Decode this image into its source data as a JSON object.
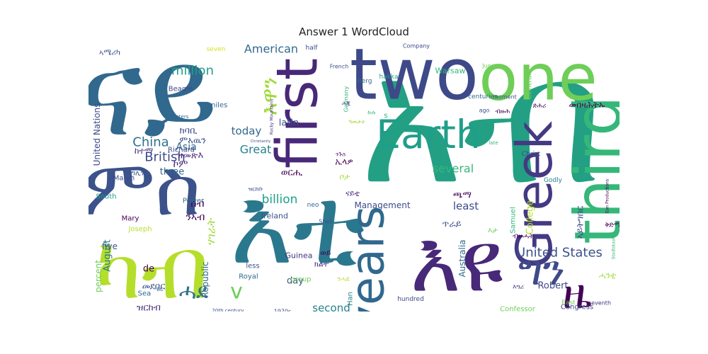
{
  "chart_data": {
    "type": "wordcloud",
    "title": "Answer 1 WordCloud",
    "palette": [
      "#440154",
      "#46327e",
      "#365c8d",
      "#277f8e",
      "#1fa187",
      "#4ac16d",
      "#a0da39",
      "#d2e21b"
    ],
    "words": [
      {
        "text": "ናይ",
        "weight": 100,
        "color": "#31688e"
      },
      {
        "text": "አብ",
        "weight": 98,
        "color": "#23a083"
      },
      {
        "text": "እቲ",
        "weight": 90,
        "color": "#2a788e"
      },
      {
        "text": "ምስ",
        "weight": 70,
        "color": "#3b528b"
      },
      {
        "text": "ካብ",
        "weight": 68,
        "color": "#b5de2b"
      },
      {
        "text": "እዩ",
        "weight": 66,
        "color": "#482878"
      },
      {
        "text": "two",
        "weight": 65,
        "color": "#3e4989"
      },
      {
        "text": "one",
        "weight": 60,
        "color": "#6ece58"
      },
      {
        "text": "third",
        "weight": 55,
        "color": "#35b779"
      },
      {
        "text": "first",
        "weight": 52,
        "color": "#482878"
      },
      {
        "text": "Greek",
        "weight": 46,
        "color": "#443983"
      },
      {
        "text": "years",
        "weight": 45,
        "color": "#31688e"
      },
      {
        "text": "Earth",
        "weight": 40,
        "color": "#1f9e89"
      },
      {
        "text": "ግን",
        "weight": 40,
        "color": "#3e4a89"
      },
      {
        "text": "ዜ",
        "weight": 38,
        "color": "#440154"
      },
      {
        "text": "ሓደ",
        "weight": 30,
        "color": "#2c728e"
      },
      {
        "text": "እዋን",
        "weight": 28,
        "color": "#a0da39"
      },
      {
        "text": "v",
        "weight": 22,
        "color": "#6ece58"
      },
      {
        "text": "United States",
        "weight": 18,
        "color": "#3b528b"
      },
      {
        "text": "China",
        "weight": 16,
        "color": "#2c728e"
      },
      {
        "text": "British",
        "weight": 15,
        "color": "#3e4a89"
      },
      {
        "text": "million",
        "weight": 14,
        "color": "#1f9e89"
      },
      {
        "text": "billion",
        "weight": 14,
        "color": "#1fa187"
      },
      {
        "text": "American",
        "weight": 13,
        "color": "#31688e"
      },
      {
        "text": "several",
        "weight": 13,
        "color": "#35b779"
      },
      {
        "text": "Great",
        "weight": 13,
        "color": "#26828e"
      },
      {
        "text": "today",
        "weight": 12,
        "color": "#31688e"
      },
      {
        "text": "second",
        "weight": 12,
        "color": "#26828e"
      },
      {
        "text": "least",
        "weight": 12,
        "color": "#3e4a89"
      },
      {
        "text": "ኮም",
        "weight": 12,
        "color": "#482878"
      },
      {
        "text": "ሰብ",
        "weight": 12,
        "color": "#440154"
      },
      {
        "text": "መበዛሕትኡ",
        "weight": 12,
        "color": "#440154"
      },
      {
        "text": "ክባቢ",
        "weight": 12,
        "color": "#3e4a89"
      },
      {
        "text": "ንኣብ",
        "weight": 12,
        "color": "#440154"
      },
      {
        "text": "ምኣዉን",
        "weight": 11,
        "color": "#3b528b"
      },
      {
        "text": "ዝመጽእ",
        "weight": 11,
        "color": "#482878"
      },
      {
        "text": "ወርሒ",
        "weight": 11,
        "color": "#440154"
      },
      {
        "text": "ሃገራት",
        "weight": 12,
        "color": "#a0da39"
      },
      {
        "text": "ከተማ",
        "weight": 11,
        "color": "#46327e"
      },
      {
        "text": "ጫማ",
        "weight": 11,
        "color": "#440154"
      },
      {
        "text": "ጥራይ",
        "weight": 11,
        "color": "#3b528b"
      },
      {
        "text": "ኣይትግበር",
        "weight": 13,
        "color": "#3e4a89"
      },
      {
        "text": "ሓንቲ",
        "weight": 11,
        "color": "#a0da39"
      },
      {
        "text": "United Nations",
        "weight": 11,
        "color": "#3e4a89"
      },
      {
        "text": "Asia",
        "weight": 10,
        "color": "#31688e"
      },
      {
        "text": "latin",
        "weight": 10,
        "color": "#3b528b"
      },
      {
        "text": "College",
        "weight": 10,
        "color": "#b5de2b"
      },
      {
        "text": "August",
        "weight": 10,
        "color": "#2a788e"
      },
      {
        "text": "Republic",
        "weight": 10,
        "color": "#31688e"
      },
      {
        "text": "Robert",
        "weight": 10,
        "color": "#3e4a89"
      },
      {
        "text": "Australia",
        "weight": 9,
        "color": "#31688e"
      },
      {
        "text": "day",
        "weight": 10,
        "color": "#3b528b"
      },
      {
        "text": "percent",
        "weight": 10,
        "color": "#6ece58"
      },
      {
        "text": "three",
        "weight": 10,
        "color": "#31688e"
      },
      {
        "text": "Ireland",
        "weight": 9,
        "color": "#3b528b"
      },
      {
        "text": "Management",
        "weight": 9,
        "color": "#3e4a89"
      },
      {
        "text": "five",
        "weight": 9,
        "color": "#3b528b"
      },
      {
        "text": "de",
        "weight": 10,
        "color": "#440154"
      },
      {
        "text": "ዝርከብ",
        "weight": 10,
        "color": "#46327e"
      },
      {
        "text": "መደበር",
        "weight": 10,
        "color": "#3b528b"
      },
      {
        "text": "እንግሊዝ",
        "weight": 11,
        "color": "#3b528b"
      },
      {
        "text": "ኣሜሪካ",
        "weight": 11,
        "color": "#3b528b"
      },
      {
        "text": "Guinea",
        "weight": 9,
        "color": "#46327e"
      },
      {
        "text": "Warsaw",
        "weight": 8,
        "color": "#35b779"
      },
      {
        "text": "Central",
        "weight": 8,
        "color": "#6ece58"
      },
      {
        "text": "Beagle",
        "weight": 8,
        "color": "#3e4a89"
      },
      {
        "text": "miles",
        "weight": 8,
        "color": "#31688e"
      },
      {
        "text": "Power",
        "weight": 8,
        "color": "#31688e"
      },
      {
        "text": "Joseph",
        "weight": 8,
        "color": "#b5de2b"
      },
      {
        "text": "Mary",
        "weight": 8,
        "color": "#440154"
      },
      {
        "text": "March",
        "weight": 8,
        "color": "#3e4a89"
      },
      {
        "text": "Richard",
        "weight": 8,
        "color": "#3e4a89"
      },
      {
        "text": "South",
        "weight": 8,
        "color": "#1f9e89"
      },
      {
        "text": "Sea",
        "weight": 8,
        "color": "#31688e"
      },
      {
        "text": "group",
        "weight": 8,
        "color": "#6ece58"
      },
      {
        "text": "less",
        "weight": 8,
        "color": "#3b528b"
      },
      {
        "text": "Royal",
        "weight": 8,
        "color": "#31688e"
      },
      {
        "text": "Han",
        "weight": 8,
        "color": "#26828e"
      },
      {
        "text": "hundred",
        "weight": 7,
        "color": "#3e4a89"
      },
      {
        "text": "Congress",
        "weight": 8,
        "color": "#3e4a89"
      },
      {
        "text": "Confessor",
        "weight": 8,
        "color": "#6ece58"
      },
      {
        "text": "Samuel",
        "weight": 8,
        "color": "#35b779"
      },
      {
        "text": "Godly",
        "weight": 7,
        "color": "#26828e"
      },
      {
        "text": "Christ",
        "weight": 7,
        "color": "#3e4a89"
      },
      {
        "text": "East",
        "weight": 7,
        "color": "#6ece58"
      },
      {
        "text": "seventh",
        "weight": 6,
        "color": "#46327e"
      },
      {
        "text": "1970s",
        "weight": 6,
        "color": "#3e4a89"
      },
      {
        "text": "20th century",
        "weight": 5,
        "color": "#3b528b"
      },
      {
        "text": "centuries",
        "weight": 7,
        "color": "#31688e"
      },
      {
        "text": "moment",
        "weight": 6,
        "color": "#3b528b"
      },
      {
        "text": "ago",
        "weight": 6,
        "color": "#3b528b"
      },
      {
        "text": "June",
        "weight": 6,
        "color": "#6ece58"
      },
      {
        "text": "Company",
        "weight": 6,
        "color": "#3e4a89"
      },
      {
        "text": "French",
        "weight": 6,
        "color": "#3b528b"
      },
      {
        "text": "hakka",
        "weight": 7,
        "color": "#1f9e89"
      },
      {
        "text": "Berg",
        "weight": 7,
        "color": "#31688e"
      },
      {
        "text": "Germany",
        "weight": 6,
        "color": "#35b779"
      },
      {
        "text": "half",
        "weight": 7,
        "color": "#3e4a89"
      },
      {
        "text": "seven",
        "weight": 7,
        "color": "#d2e21b"
      },
      {
        "text": "neo",
        "weight": 7,
        "color": "#31688e"
      },
      {
        "text": "Shell",
        "weight": 6,
        "color": "#3b528b"
      },
      {
        "text": "BC",
        "weight": 6,
        "color": "#31688e"
      },
      {
        "text": "meters",
        "weight": 6,
        "color": "#31688e"
      },
      {
        "text": "late",
        "weight": 6,
        "color": "#35b779"
      },
      {
        "text": "Rocky Mountains",
        "weight": 4,
        "color": "#46327e"
      },
      {
        "text": "Stadtstaaten",
        "weight": 5,
        "color": "#35b779"
      },
      {
        "text": "Eon Productions",
        "weight": 4,
        "color": "#440154"
      },
      {
        "text": "Christianity",
        "weight": 4,
        "color": "#3b528b"
      },
      {
        "text": "s",
        "weight": 9,
        "color": "#35b779"
      },
      {
        "text": "ኢላዎ",
        "weight": 10,
        "color": "#440154"
      },
      {
        "text": "ናይቲ",
        "weight": 10,
        "color": "#482878"
      },
      {
        "text": "ቦታ",
        "weight": 10,
        "color": "#a0da39"
      },
      {
        "text": "ወይ",
        "weight": 10,
        "color": "#440154"
      },
      {
        "text": "ክልተ",
        "weight": 10,
        "color": "#46327e"
      },
      {
        "text": "እታ",
        "weight": 10,
        "color": "#6ece58"
      },
      {
        "text": "ቅድሚ",
        "weight": 9,
        "color": "#440154"
      },
      {
        "text": "ብዙሓት",
        "weight": 9,
        "color": "#440154"
      },
      {
        "text": "ብዙሕ",
        "weight": 9,
        "color": "#440154"
      },
      {
        "text": "ድሕሪ",
        "weight": 8,
        "color": "#440154"
      },
      {
        "text": "ንሓደ",
        "weight": 9,
        "color": "#b5de2b"
      },
      {
        "text": "ሕጂ",
        "weight": 8,
        "color": "#3e4a89"
      },
      {
        "text": "እግሪ",
        "weight": 8,
        "color": "#46327e"
      },
      {
        "text": "ንጉስ",
        "weight": 8,
        "color": "#440154"
      },
      {
        "text": "ዝርከቡ",
        "weight": 8,
        "color": "#3e4a89"
      },
      {
        "text": "ዓመታት",
        "weight": 7,
        "color": "#a0da39"
      },
      {
        "text": "ኩሉ",
        "weight": 7,
        "color": "#35b779"
      }
    ]
  }
}
